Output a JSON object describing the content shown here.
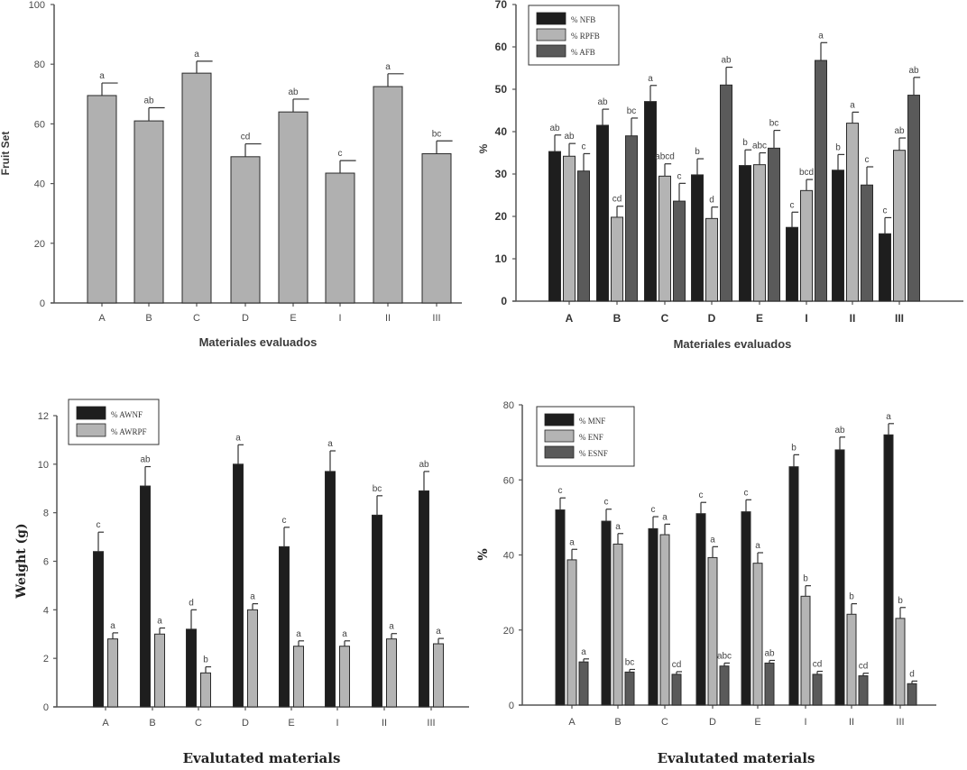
{
  "figure": {
    "colors": {
      "black_series": "#1e1e1e",
      "light_series": "#b4b4b4",
      "dark_series": "#5a5a5a",
      "single_series": "#b0b0b0",
      "axis": "#555555",
      "bar_stroke": "#2a2a2a"
    }
  },
  "chart_data": [
    {
      "id": "fruit-set",
      "type": "bar",
      "title": "",
      "xlabel": "Materiales evaluados",
      "ylabel": "Fruit Set",
      "ylim": [
        0,
        100
      ],
      "yticks": [
        0,
        20,
        40,
        60,
        80,
        100
      ],
      "categories": [
        "A",
        "B",
        "C",
        "D",
        "E",
        "I",
        "II",
        "III"
      ],
      "legend": null,
      "series": [
        {
          "name": "Fruit Set",
          "color_key": "single_series",
          "values": [
            69.5,
            61,
            77,
            49,
            64,
            43.5,
            72.5,
            50
          ],
          "errors": [
            4.2,
            4.4,
            4.0,
            4.3,
            4.3,
            4.2,
            4.3,
            4.3
          ],
          "labels": [
            "a",
            "ab",
            "a",
            "cd",
            "ab",
            "c",
            "a",
            "bc"
          ]
        }
      ]
    },
    {
      "id": "flower-buds",
      "type": "bar",
      "title": "",
      "xlabel": "Materiales evaluados",
      "ylabel": "%",
      "ylim": [
        0,
        70
      ],
      "yticks": [
        0,
        10,
        20,
        30,
        40,
        50,
        60,
        70
      ],
      "categories": [
        "A",
        "B",
        "C",
        "D",
        "E",
        "I",
        "II",
        "III"
      ],
      "legend": {
        "position": "top-left"
      },
      "series": [
        {
          "name": "% NFB",
          "color_key": "black_series",
          "values": [
            35.3,
            41.5,
            47.1,
            29.8,
            32,
            17.4,
            30.9,
            15.9
          ],
          "errors": [
            3.9,
            3.8,
            3.8,
            3.8,
            3.7,
            3.6,
            3.7,
            3.8
          ],
          "labels": [
            "ab",
            "ab",
            "a",
            "b",
            "b",
            "c",
            "b",
            "c"
          ]
        },
        {
          "name": "% RPFB",
          "color_key": "light_series",
          "values": [
            34.2,
            19.8,
            29.5,
            19.5,
            32.2,
            26.1,
            42,
            35.6
          ],
          "errors": [
            3.0,
            2.6,
            2.9,
            2.7,
            2.8,
            2.6,
            2.6,
            2.9
          ],
          "labels": [
            "ab",
            "cd",
            "abcd",
            "d",
            "abc",
            "bcd",
            "a",
            "ab"
          ]
        },
        {
          "name": "% AFB",
          "color_key": "dark_series",
          "values": [
            30.7,
            39,
            23.6,
            51,
            36.1,
            56.8,
            27.4,
            48.6
          ],
          "errors": [
            4.1,
            4.2,
            4.2,
            4.2,
            4.2,
            4.2,
            4.3,
            4.2
          ],
          "labels": [
            "c",
            "bc",
            "c",
            "ab",
            "bc",
            "a",
            "c",
            "ab"
          ]
        }
      ]
    },
    {
      "id": "fruit-weight",
      "type": "bar",
      "title": "",
      "xlabel": "Evalutated materials",
      "ylabel": "Weight (g)",
      "ylim": [
        0,
        12
      ],
      "yticks": [
        0,
        2,
        4,
        6,
        8,
        10,
        12
      ],
      "categories": [
        "A",
        "B",
        "C",
        "D",
        "E",
        "I",
        "II",
        "III"
      ],
      "legend": {
        "position": "top-left"
      },
      "series": [
        {
          "name": "% AWNF",
          "color_key": "black_series",
          "values": [
            6.4,
            9.1,
            3.2,
            10,
            6.6,
            9.7,
            7.9,
            8.9
          ],
          "errors": [
            0.8,
            0.8,
            0.8,
            0.8,
            0.8,
            0.85,
            0.8,
            0.8
          ],
          "labels": [
            "c",
            "ab",
            "d",
            "a",
            "c",
            "a",
            "bc",
            "ab"
          ]
        },
        {
          "name": "% AWRPF",
          "color_key": "light_series",
          "values": [
            2.8,
            3,
            1.4,
            4,
            2.5,
            2.5,
            2.8,
            2.6
          ],
          "errors": [
            0.25,
            0.25,
            0.25,
            0.25,
            0.22,
            0.22,
            0.22,
            0.22
          ],
          "labels": [
            "a",
            "a",
            "b",
            "a",
            "a",
            "a",
            "a",
            "a"
          ]
        }
      ]
    },
    {
      "id": "fruit-type",
      "type": "bar",
      "title": "",
      "xlabel": "Evalutated materials",
      "ylabel": "%",
      "ylim": [
        0,
        80
      ],
      "yticks": [
        0,
        20,
        40,
        60,
        80
      ],
      "categories": [
        "A",
        "B",
        "C",
        "D",
        "E",
        "I",
        "II",
        "III"
      ],
      "legend": {
        "position": "top-left"
      },
      "series": [
        {
          "name": "% MNF",
          "color_key": "black_series",
          "values": [
            52,
            49,
            47,
            51,
            51.5,
            63.5,
            68,
            72
          ],
          "errors": [
            3.2,
            3.2,
            3.2,
            3.0,
            3.2,
            3.2,
            3.4,
            3.0
          ],
          "labels": [
            "c",
            "c",
            "c",
            "c",
            "c",
            "b",
            "ab",
            "a"
          ]
        },
        {
          "name": "% ENF",
          "color_key": "light_series",
          "values": [
            38.7,
            42.9,
            45.4,
            39.3,
            37.8,
            29,
            24.2,
            23.1
          ],
          "errors": [
            2.8,
            2.8,
            2.8,
            2.9,
            2.8,
            2.8,
            2.8,
            2.9
          ],
          "labels": [
            "a",
            "a",
            "a",
            "a",
            "a",
            "b",
            "b",
            "b"
          ]
        },
        {
          "name": "% ESNF",
          "color_key": "dark_series",
          "values": [
            11.5,
            8.8,
            8.2,
            10.4,
            11.2,
            8.2,
            7.8,
            5.7
          ],
          "errors": [
            0.8,
            0.7,
            0.7,
            0.8,
            0.7,
            0.8,
            0.7,
            0.7
          ],
          "labels": [
            "a",
            "bc",
            "cd",
            "abc",
            "ab",
            "cd",
            "cd",
            "d"
          ]
        }
      ]
    }
  ]
}
